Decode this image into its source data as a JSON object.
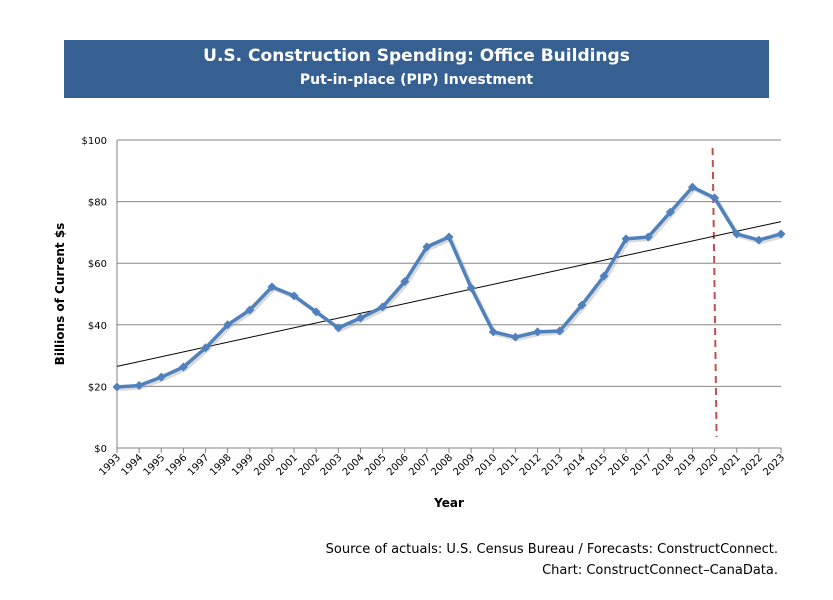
{
  "chart_data": {
    "type": "line",
    "title": "U.S. Construction Spending: Office Buildings",
    "subtitle": "Put-in-place (PIP) Investment",
    "xlabel": "Year",
    "ylabel": "Billions of Current $s",
    "ylim": [
      0,
      100
    ],
    "yticks": [
      "$0",
      "$20",
      "$40",
      "$60",
      "$80",
      "$100"
    ],
    "grid": "horizontal",
    "x": [
      "1993",
      "1994",
      "1995",
      "1996",
      "1997",
      "1998",
      "1999",
      "2000",
      "2001",
      "2002",
      "2003",
      "2004",
      "2005",
      "2006",
      "2007",
      "2008",
      "2009",
      "2010",
      "2011",
      "2012",
      "2013",
      "2014",
      "2015",
      "2016",
      "2017",
      "2018",
      "2019",
      "2020",
      "2021",
      "2022",
      "2023"
    ],
    "series": [
      {
        "values": [
          19.8,
          20.3,
          23,
          26.3,
          32.5,
          40,
          44.8,
          52.3,
          49.4,
          44.2,
          39,
          42.2,
          45.8,
          54,
          65.3,
          68.5,
          52,
          37.7,
          36,
          37.7,
          38,
          46.4,
          55.8,
          67.9,
          68.5,
          76.6,
          84.7,
          81.2,
          69.5,
          67.5,
          69.5
        ],
        "color": "#4f81bd"
      }
    ],
    "trendline": {
      "start": 26.5,
      "end": 73.5,
      "color": "#000000"
    },
    "forecast_marker": {
      "x": "2020",
      "color": "#c0504d"
    }
  },
  "source_line1": "Source of actuals: U.S. Census Bureau / Forecasts: ConstructConnect.",
  "source_line2": "Chart: ConstructConnect–CanaData."
}
